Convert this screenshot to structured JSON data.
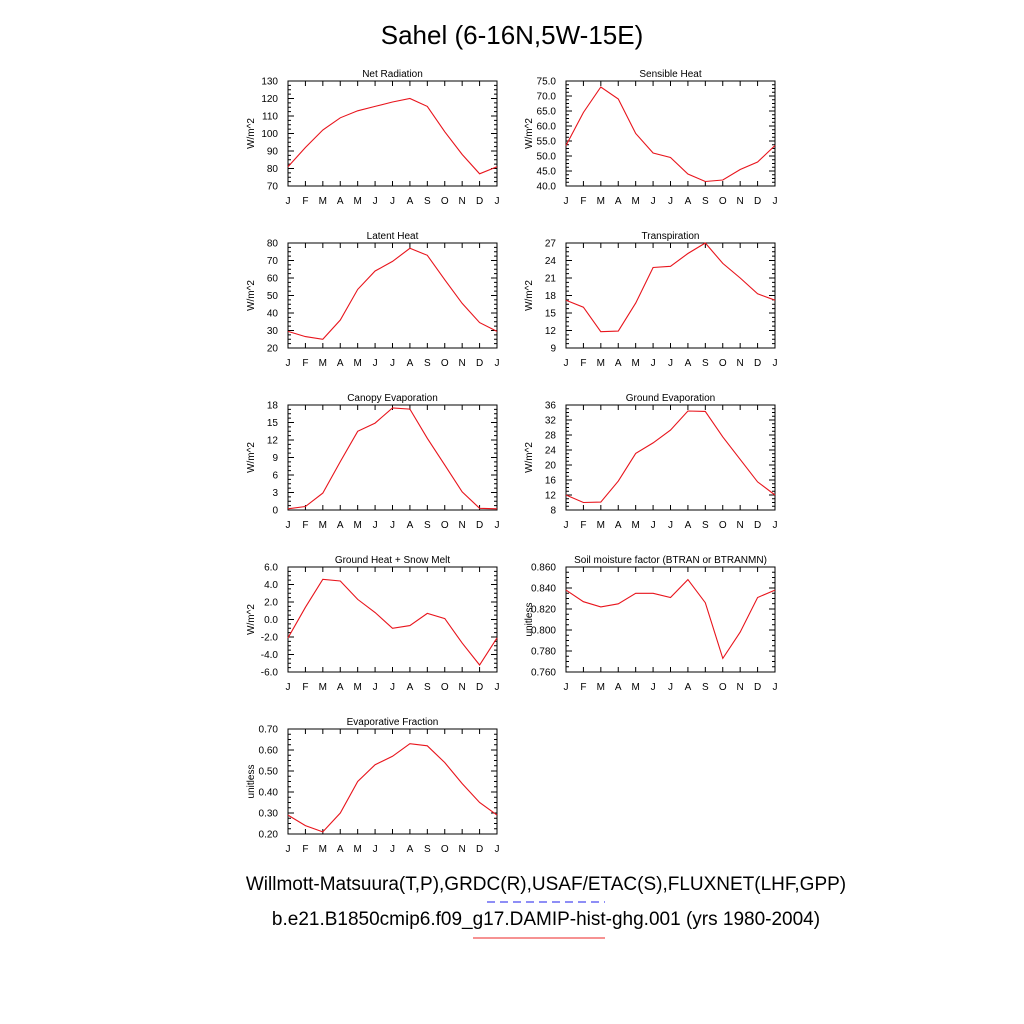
{
  "title": "Sahel (6-16N,5W-15E)",
  "month_labels": [
    "J",
    "F",
    "M",
    "A",
    "M",
    "J",
    "J",
    "A",
    "S",
    "O",
    "N",
    "D",
    "J"
  ],
  "series_color": "#e8141c",
  "footer": {
    "line1": "Willmott-Matsuura(T,P),GRDC(R),USAF/ETAC(S),FLUXNET(LHF,GPP)",
    "line2": "b.e21.B1850cmip6.f09_g17.DAMIP-hist-ghg.001 (yrs 1980-2004)",
    "line1_key_color": "#4a4af0",
    "line2_key_color": "#f05050"
  },
  "chart_data": [
    {
      "type": "line",
      "title": "Net Radiation",
      "ylabel": "W/m^2",
      "ylim": [
        70,
        130
      ],
      "yticks": [
        "70",
        "80",
        "90",
        "100",
        "110",
        "120",
        "130"
      ],
      "x": [
        "J",
        "F",
        "M",
        "A",
        "M",
        "J",
        "J",
        "A",
        "S",
        "O",
        "N",
        "D",
        "J"
      ],
      "values": [
        81,
        92,
        102,
        109,
        113,
        115.5,
        118,
        120,
        115.5,
        101,
        88,
        77,
        81
      ]
    },
    {
      "type": "line",
      "title": "Sensible Heat",
      "ylabel": "W/m^2",
      "ylim": [
        40,
        75
      ],
      "yticks": [
        "40.0",
        "45.0",
        "50.0",
        "55.0",
        "60.0",
        "65.0",
        "70.0",
        "75.0"
      ],
      "x": [
        "J",
        "F",
        "M",
        "A",
        "M",
        "J",
        "J",
        "A",
        "S",
        "O",
        "N",
        "D",
        "J"
      ],
      "values": [
        53.5,
        64.5,
        73,
        69,
        57.5,
        51,
        49.5,
        44,
        41.5,
        42,
        45.5,
        48,
        53.5
      ]
    },
    {
      "type": "line",
      "title": "Latent Heat",
      "ylabel": "W/m^2",
      "ylim": [
        20,
        80
      ],
      "yticks": [
        "20",
        "30",
        "40",
        "50",
        "60",
        "70",
        "80"
      ],
      "x": [
        "J",
        "F",
        "M",
        "A",
        "M",
        "J",
        "J",
        "A",
        "S",
        "O",
        "N",
        "D",
        "J"
      ],
      "values": [
        29.5,
        26.5,
        25,
        36,
        53.5,
        64,
        69.5,
        77,
        73,
        59,
        45.5,
        34.5,
        29.5
      ]
    },
    {
      "type": "line",
      "title": "Transpiration",
      "ylabel": "W/m^2",
      "ylim": [
        9,
        27
      ],
      "yticks": [
        "9",
        "12",
        "15",
        "18",
        "21",
        "24",
        "27"
      ],
      "x": [
        "J",
        "F",
        "M",
        "A",
        "M",
        "J",
        "J",
        "A",
        "S",
        "O",
        "N",
        "D",
        "J"
      ],
      "values": [
        17.2,
        16,
        11.8,
        11.9,
        16.7,
        22.8,
        23,
        25.2,
        27,
        23.5,
        21,
        18.3,
        17.2
      ]
    },
    {
      "type": "line",
      "title": "Canopy Evaporation",
      "ylabel": "W/m^2",
      "ylim": [
        0,
        18
      ],
      "yticks": [
        "0",
        "3",
        "6",
        "9",
        "12",
        "15",
        "18"
      ],
      "x": [
        "J",
        "F",
        "M",
        "A",
        "M",
        "J",
        "J",
        "A",
        "S",
        "O",
        "N",
        "D",
        "J"
      ],
      "values": [
        0.2,
        0.6,
        2.9,
        8.3,
        13.5,
        14.9,
        17.5,
        17.3,
        12.3,
        7.7,
        3.1,
        0.3,
        0.2
      ]
    },
    {
      "type": "line",
      "title": "Ground Evaporation",
      "ylabel": "W/m^2",
      "ylim": [
        8,
        36
      ],
      "yticks": [
        "8",
        "12",
        "16",
        "20",
        "24",
        "28",
        "32",
        "36"
      ],
      "x": [
        "J",
        "F",
        "M",
        "A",
        "M",
        "J",
        "J",
        "A",
        "S",
        "O",
        "N",
        "D",
        "J"
      ],
      "values": [
        12,
        10,
        10.1,
        15.7,
        23.1,
        25.9,
        29.3,
        34.4,
        34.3,
        27.5,
        21.5,
        15.5,
        12
      ]
    },
    {
      "type": "line",
      "title": "Ground Heat + Snow Melt",
      "ylabel": "W/m^2",
      "ylim": [
        -6,
        6
      ],
      "yticks": [
        "-6.0",
        "-4.0",
        "-2.0",
        "0.0",
        "2.0",
        "4.0",
        "6.0"
      ],
      "x": [
        "J",
        "F",
        "M",
        "A",
        "M",
        "J",
        "J",
        "A",
        "S",
        "O",
        "N",
        "D",
        "J"
      ],
      "values": [
        -2.1,
        1.4,
        4.6,
        4.4,
        2.3,
        0.8,
        -1,
        -0.7,
        0.7,
        0.1,
        -2.7,
        -5.2,
        -2.1
      ]
    },
    {
      "type": "line",
      "title": "Soil moisture factor (BTRAN or BTRANMN)",
      "ylabel": "unitless",
      "ylim": [
        0.76,
        0.86
      ],
      "yticks": [
        "0.760",
        "0.780",
        "0.800",
        "0.820",
        "0.840",
        "0.860"
      ],
      "x": [
        "J",
        "F",
        "M",
        "A",
        "M",
        "J",
        "J",
        "A",
        "S",
        "O",
        "N",
        "D",
        "J"
      ],
      "values": [
        0.838,
        0.827,
        0.822,
        0.825,
        0.835,
        0.835,
        0.831,
        0.848,
        0.826,
        0.773,
        0.798,
        0.831,
        0.838
      ]
    },
    {
      "type": "line",
      "title": "Evaporative Fraction",
      "ylabel": "unitless",
      "ylim": [
        0.2,
        0.7
      ],
      "yticks": [
        "0.20",
        "0.30",
        "0.40",
        "0.50",
        "0.60",
        "0.70"
      ],
      "x": [
        "J",
        "F",
        "M",
        "A",
        "M",
        "J",
        "J",
        "A",
        "S",
        "O",
        "N",
        "D",
        "J"
      ],
      "values": [
        0.29,
        0.24,
        0.21,
        0.3,
        0.45,
        0.53,
        0.57,
        0.63,
        0.62,
        0.54,
        0.44,
        0.35,
        0.29
      ]
    }
  ]
}
